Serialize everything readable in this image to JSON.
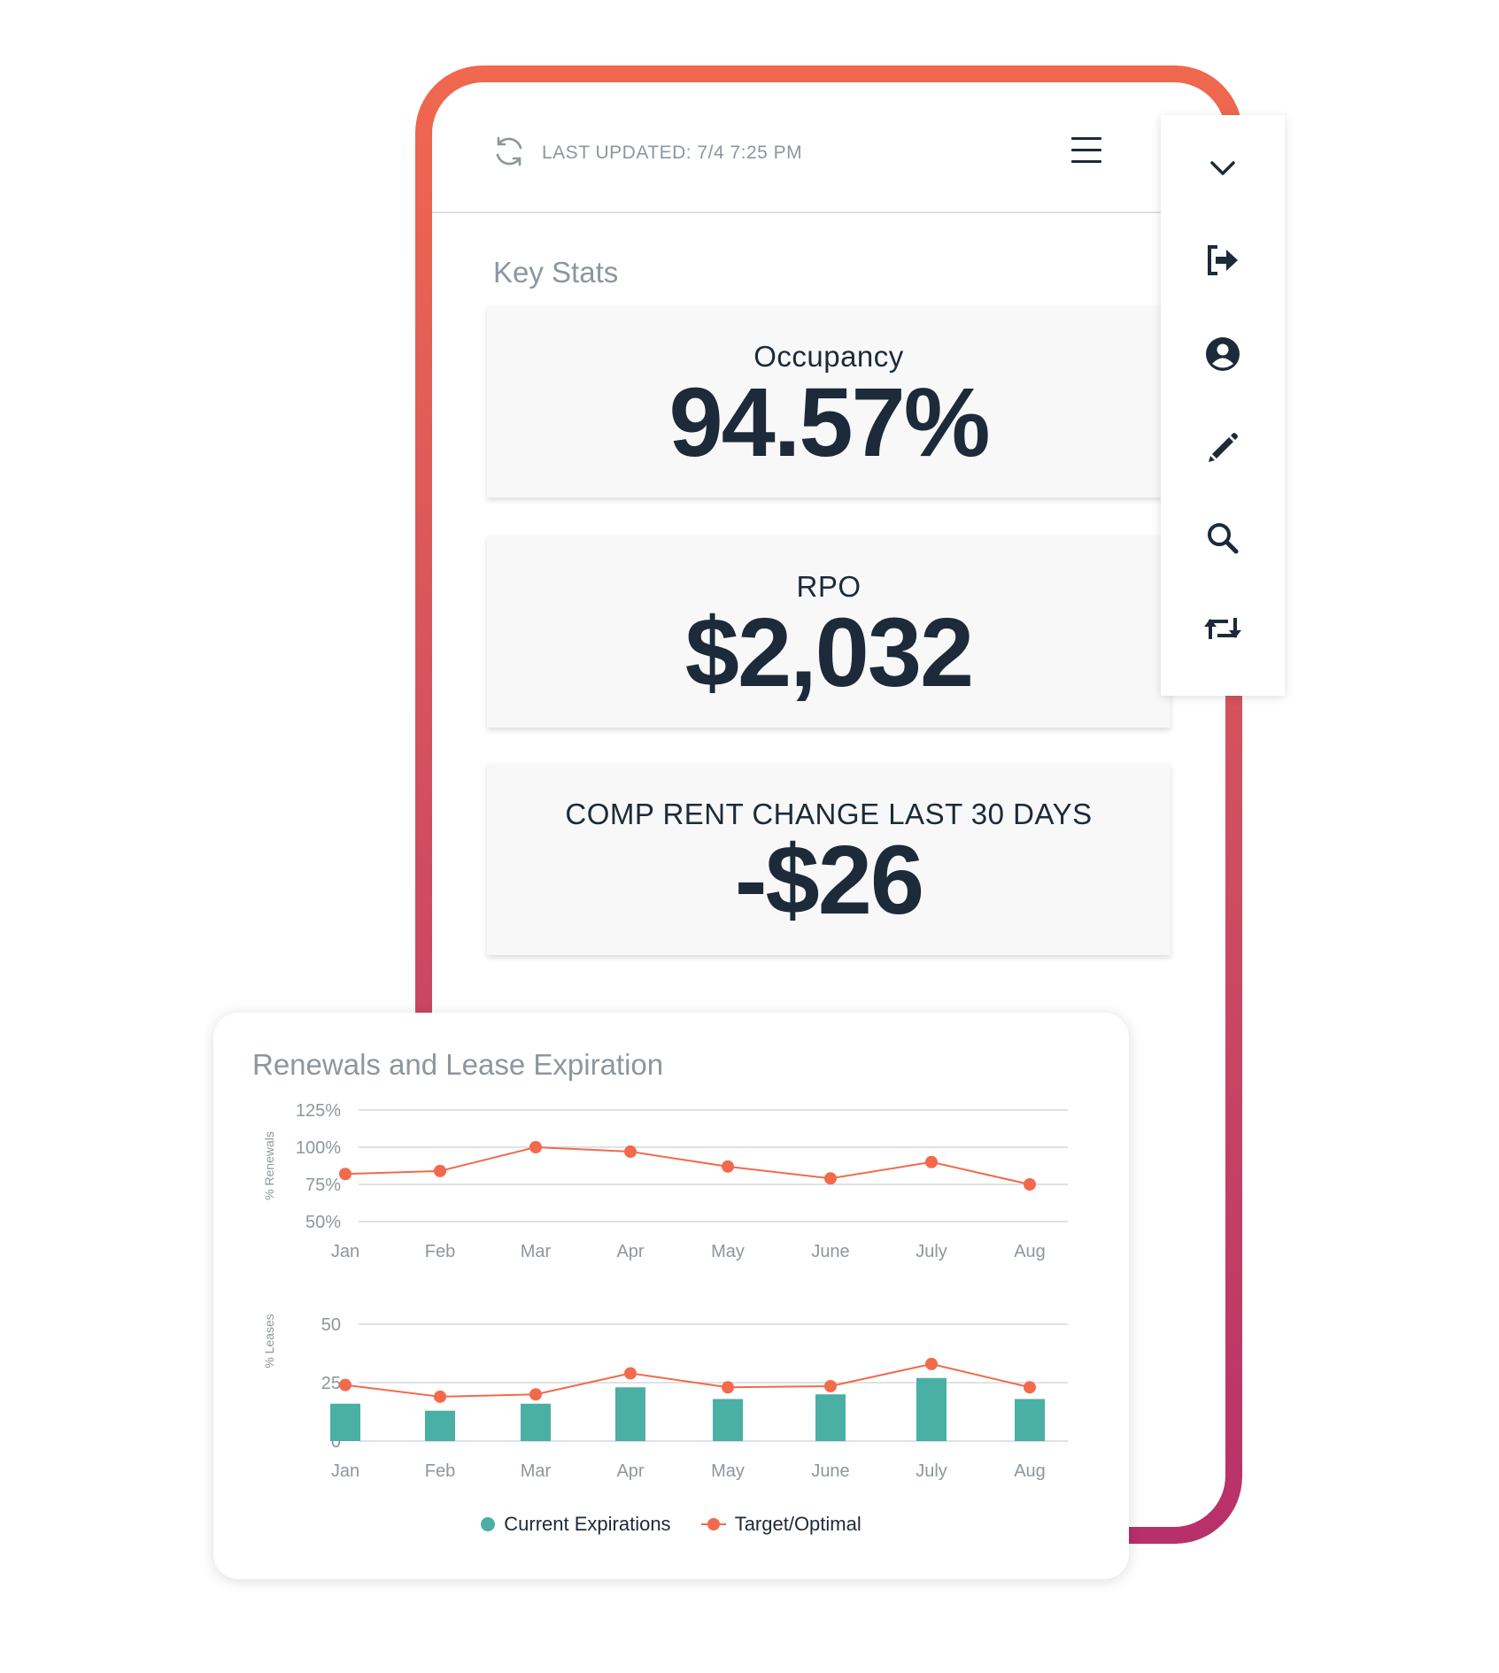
{
  "header": {
    "last_updated": "LAST UPDATED: 7/4 7:25 PM"
  },
  "key_stats": {
    "title": "Key Stats",
    "cards": [
      {
        "label": "Occupancy",
        "value": "94.57%"
      },
      {
        "label": "RPO",
        "value": "$2,032"
      },
      {
        "label": "COMP RENT CHANGE LAST 30 DAYS",
        "value": "-$26"
      }
    ]
  },
  "toolbar": {
    "icons": [
      "chevron-down-icon",
      "sign-out-icon",
      "user-circle-icon",
      "pencil-icon",
      "search-icon",
      "swap-icon"
    ]
  },
  "colors": {
    "accent_orange": "#f26a4b",
    "teal": "#4aafa5",
    "navy": "#1c2a3a",
    "frame_top": "#f0684e",
    "frame_bottom": "#b8306a"
  },
  "chart": {
    "title": "Renewals and Lease Expiration",
    "legend": [
      "Current Expirations",
      "Target/Optimal"
    ]
  },
  "chart_data": [
    {
      "type": "line",
      "title": "",
      "ylabel": "% Renewals",
      "categories": [
        "Jan",
        "Feb",
        "Mar",
        "Apr",
        "May",
        "June",
        "July",
        "Aug"
      ],
      "yticks": [
        "50%",
        "75%",
        "100%",
        "125%"
      ],
      "ylim": [
        50,
        125
      ],
      "series": [
        {
          "name": "Target/Optimal",
          "values": [
            82,
            84,
            100,
            97,
            87,
            79,
            90,
            75
          ]
        }
      ]
    },
    {
      "type": "bar",
      "title": "",
      "ylabel": "% Leases",
      "categories": [
        "Jan",
        "Feb",
        "Mar",
        "Apr",
        "May",
        "June",
        "July",
        "Aug"
      ],
      "yticks": [
        "0",
        "25",
        "50"
      ],
      "ylim": [
        0,
        50
      ],
      "series": [
        {
          "name": "Current Expirations",
          "type": "bar",
          "values": [
            16,
            13,
            16,
            23,
            18,
            20,
            27,
            18
          ]
        },
        {
          "name": "Target/Optimal",
          "type": "line",
          "values": [
            24,
            19,
            20,
            29,
            23,
            23.5,
            33,
            23
          ]
        }
      ]
    }
  ]
}
